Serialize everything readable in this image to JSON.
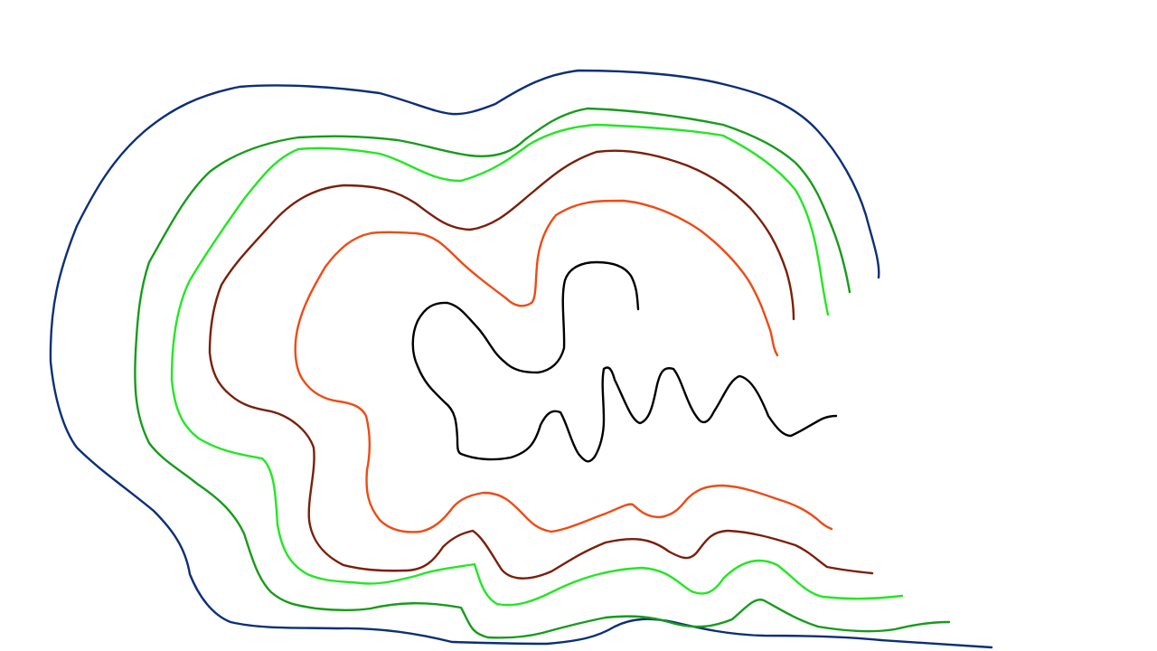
{
  "drawing": {
    "background": "#ffffff",
    "strokes": [
      {
        "name": "outer-navy-contour-line",
        "color": "#0b2f78"
      },
      {
        "name": "dark-green-contour-line",
        "color": "#169c1a"
      },
      {
        "name": "light-green-contour-line",
        "color": "#22e822"
      },
      {
        "name": "brown-contour-line",
        "color": "#7a1f0a"
      },
      {
        "name": "orange-contour-line",
        "color": "#f04a14"
      },
      {
        "name": "black-inner-squiggle-line",
        "color": "#000000"
      }
    ]
  }
}
